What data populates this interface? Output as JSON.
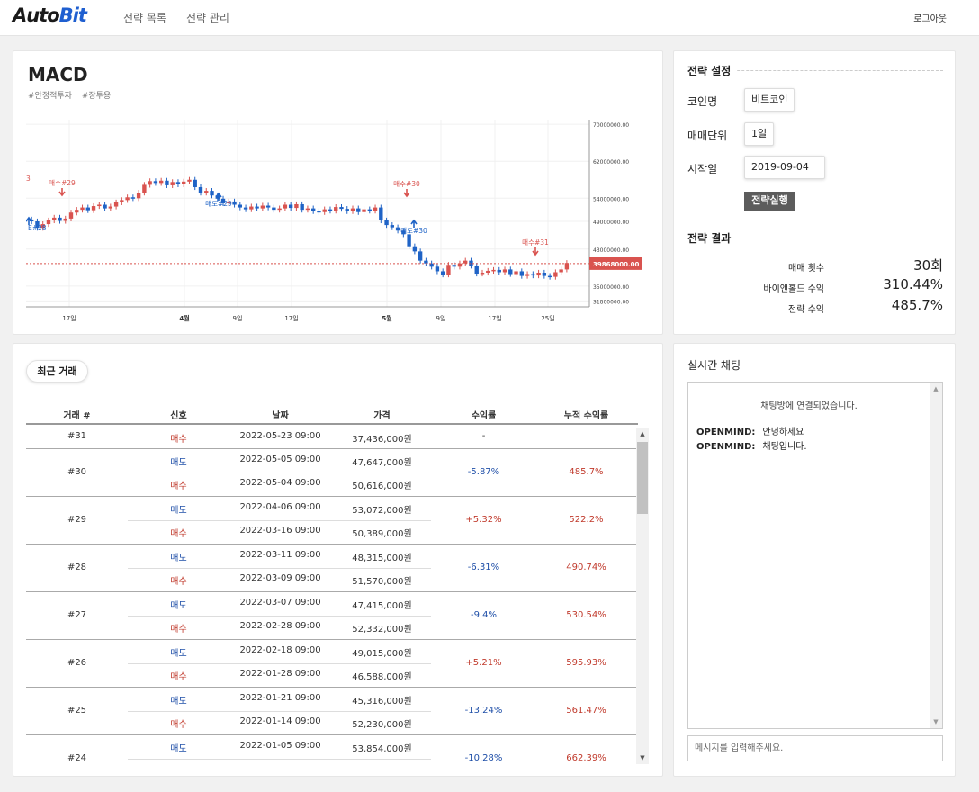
{
  "header": {
    "logo_main": "Auto",
    "logo_accent": "Bit",
    "nav": [
      "전략 목록",
      "전략 관리"
    ],
    "logout": "로그아웃"
  },
  "strategy": {
    "title": "MACD",
    "tags": [
      "#안정적투자",
      "#장투용"
    ]
  },
  "chart_data": {
    "type": "candlestick",
    "price_axis": [
      "70000000.00",
      "62000000.00",
      "54000000.00",
      "49000000.00",
      "43000000.00",
      "39868000.00",
      "35000000.00",
      "31800000.00"
    ],
    "current_price": "39868000.00",
    "x_ticks": [
      "17일",
      "4월",
      "9일",
      "17일",
      "5월",
      "9일",
      "17일",
      "25일"
    ],
    "bold_ticks": [
      "4월",
      "5월"
    ],
    "signals": [
      {
        "label": "3",
        "type": "buy"
      },
      {
        "label": "매수#29",
        "type": "buy"
      },
      {
        "label": "E#28",
        "type": "sell"
      },
      {
        "label": "매도#29",
        "type": "sell"
      },
      {
        "label": "매수#30",
        "type": "buy"
      },
      {
        "label": "매도#30",
        "type": "sell"
      },
      {
        "label": "매수#31",
        "type": "buy"
      }
    ],
    "colors": {
      "up": "#d9534f",
      "down": "#1f63c6",
      "price_line": "#d9534f"
    }
  },
  "settings": {
    "title": "전략 설정",
    "coin_label": "코인명",
    "coin_value": "비트코인",
    "unit_label": "매매단위",
    "unit_value": "1일",
    "start_label": "시작일",
    "start_value": "2019-09-04",
    "run_button": "전략실행"
  },
  "results": {
    "title": "전략 결과",
    "trade_count_label": "매매 횟수",
    "trade_count_value": "30회",
    "buyhold_label": "바이앤홀드 수익",
    "buyhold_value": "310.44%",
    "strategy_label": "전략 수익",
    "strategy_value": "485.7%"
  },
  "trades": {
    "button": "최근 거래",
    "headers": [
      "거래 #",
      "신호",
      "날짜",
      "가격",
      "수익률",
      "누적 수익률"
    ],
    "rows": [
      {
        "id": "#31",
        "entries": [
          {
            "signal": "매수",
            "type": "buy",
            "date": "2022-05-23 09:00",
            "price": "37,436,000원"
          }
        ],
        "return": "-",
        "return_type": "none",
        "cumulative": ""
      },
      {
        "id": "#30",
        "entries": [
          {
            "signal": "매도",
            "type": "sell",
            "date": "2022-05-05 09:00",
            "price": "47,647,000원"
          },
          {
            "signal": "매수",
            "type": "buy",
            "date": "2022-05-04 09:00",
            "price": "50,616,000원"
          }
        ],
        "return": "-5.87%",
        "return_type": "neg",
        "cumulative": "485.7%"
      },
      {
        "id": "#29",
        "entries": [
          {
            "signal": "매도",
            "type": "sell",
            "date": "2022-04-06 09:00",
            "price": "53,072,000원"
          },
          {
            "signal": "매수",
            "type": "buy",
            "date": "2022-03-16 09:00",
            "price": "50,389,000원"
          }
        ],
        "return": "+5.32%",
        "return_type": "pos",
        "cumulative": "522.2%"
      },
      {
        "id": "#28",
        "entries": [
          {
            "signal": "매도",
            "type": "sell",
            "date": "2022-03-11 09:00",
            "price": "48,315,000원"
          },
          {
            "signal": "매수",
            "type": "buy",
            "date": "2022-03-09 09:00",
            "price": "51,570,000원"
          }
        ],
        "return": "-6.31%",
        "return_type": "neg",
        "cumulative": "490.74%"
      },
      {
        "id": "#27",
        "entries": [
          {
            "signal": "매도",
            "type": "sell",
            "date": "2022-03-07 09:00",
            "price": "47,415,000원"
          },
          {
            "signal": "매수",
            "type": "buy",
            "date": "2022-02-28 09:00",
            "price": "52,332,000원"
          }
        ],
        "return": "-9.4%",
        "return_type": "neg",
        "cumulative": "530.54%"
      },
      {
        "id": "#26",
        "entries": [
          {
            "signal": "매도",
            "type": "sell",
            "date": "2022-02-18 09:00",
            "price": "49,015,000원"
          },
          {
            "signal": "매수",
            "type": "buy",
            "date": "2022-01-28 09:00",
            "price": "46,588,000원"
          }
        ],
        "return": "+5.21%",
        "return_type": "pos",
        "cumulative": "595.93%"
      },
      {
        "id": "#25",
        "entries": [
          {
            "signal": "매도",
            "type": "sell",
            "date": "2022-01-21 09:00",
            "price": "45,316,000원"
          },
          {
            "signal": "매수",
            "type": "buy",
            "date": "2022-01-14 09:00",
            "price": "52,230,000원"
          }
        ],
        "return": "-13.24%",
        "return_type": "neg",
        "cumulative": "561.47%"
      },
      {
        "id": "#24",
        "entries": [
          {
            "signal": "매도",
            "type": "sell",
            "date": "2022-01-05 09:00",
            "price": "53,854,000원"
          }
        ],
        "return": "-10.28%",
        "return_type": "neg",
        "cumulative": "662.39%"
      }
    ]
  },
  "chat": {
    "title": "실시간 채팅",
    "system_message": "채팅방에 연결되었습니다.",
    "messages": [
      {
        "user": "OPENMIND:",
        "text": "안녕하세요"
      },
      {
        "user": "OPENMIND:",
        "text": "채팅입니다."
      }
    ],
    "input_placeholder": "메시지를 입력해주세요."
  }
}
